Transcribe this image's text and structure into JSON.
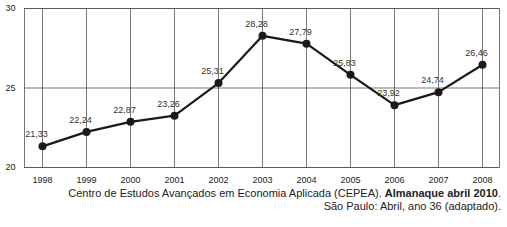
{
  "chart_data": {
    "type": "line",
    "categories": [
      "1998",
      "1999",
      "2000",
      "2001",
      "2002",
      "2003",
      "2004",
      "2005",
      "2006",
      "2007",
      "2008"
    ],
    "values": [
      21.33,
      22.24,
      22.87,
      23.26,
      25.31,
      28.28,
      27.79,
      25.83,
      23.92,
      24.74,
      26.46
    ],
    "value_labels": [
      "21,33",
      "22,24",
      "22,87",
      "23,26",
      "25,31",
      "28,28",
      "27,79",
      "25,83",
      "23,92",
      "24,74",
      "26,46"
    ],
    "color": "#1a1a1a",
    "marker": "circle",
    "ylim": [
      20,
      30
    ],
    "yticks": [
      20,
      25,
      30
    ],
    "grid": true,
    "data_labels": true,
    "source": [
      [
        "Centro de Estudos Avançados em Economia Aplicada (CEPEA). ",
        "Almanaque abril 2010",
        "."
      ],
      [
        "São Paulo: Abril, ano 36 (adaptado)."
      ]
    ]
  }
}
